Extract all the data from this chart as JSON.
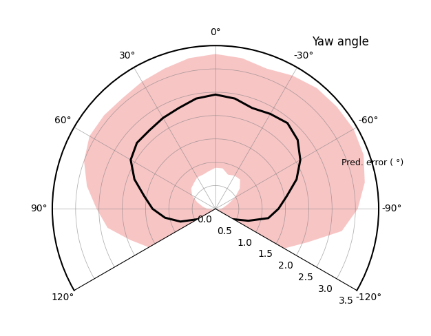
{
  "title": "Yaw angle",
  "radial_label": "Pred. error ( °)",
  "theta_ticks_deg": [
    0,
    30,
    60,
    90,
    120,
    -30,
    -60,
    -90,
    -120
  ],
  "theta_tick_labels": [
    "0°",
    "30°",
    "60°",
    "90°",
    "120°",
    "-30°",
    "-60°",
    "-90°",
    "-120°"
  ],
  "r_ticks": [
    0.0,
    0.5,
    1.0,
    1.5,
    2.0,
    2.5,
    3.0,
    3.5
  ],
  "r_max": 3.5,
  "theta_min_deg": -120,
  "theta_max_deg": 120,
  "mean_angles_deg": [
    -120,
    -110,
    -100,
    -90,
    -80,
    -70,
    -60,
    -50,
    -40,
    -30,
    -20,
    -10,
    0,
    10,
    20,
    30,
    40,
    50,
    60,
    70,
    80,
    90,
    100,
    110,
    120
  ],
  "mean_values": [
    0.45,
    0.75,
    1.15,
    1.35,
    1.55,
    1.85,
    2.1,
    2.3,
    2.4,
    2.35,
    2.3,
    2.4,
    2.45,
    2.4,
    2.3,
    2.25,
    2.2,
    2.2,
    2.1,
    1.85,
    1.55,
    1.35,
    1.1,
    0.8,
    0.45
  ],
  "upper_values": [
    1.7,
    2.1,
    2.75,
    3.05,
    3.25,
    3.38,
    3.42,
    3.4,
    3.38,
    3.3,
    3.2,
    3.28,
    3.32,
    3.28,
    3.2,
    3.15,
    3.1,
    3.12,
    3.12,
    3.0,
    2.8,
    2.55,
    2.35,
    1.95,
    1.65
  ],
  "lower_values": [
    0.05,
    0.05,
    0.08,
    0.12,
    0.18,
    0.28,
    0.48,
    0.68,
    0.82,
    0.82,
    0.78,
    0.88,
    0.88,
    0.82,
    0.78,
    0.78,
    0.72,
    0.68,
    0.58,
    0.42,
    0.28,
    0.18,
    0.08,
    0.05,
    0.05
  ],
  "mean_color": "#000000",
  "fill_color": "#f08080",
  "fill_alpha": 0.45,
  "mean_linewidth": 2.2,
  "background_color": "#ffffff",
  "title_fontsize": 12,
  "tick_fontsize": 10,
  "radial_tick_fontsize": 9
}
